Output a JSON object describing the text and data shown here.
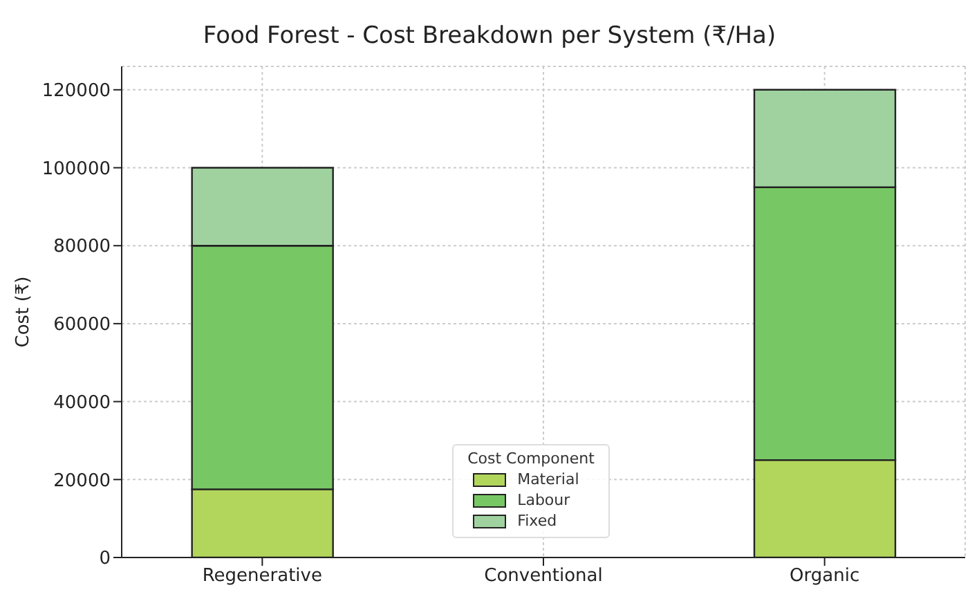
{
  "chart_data": {
    "type": "bar",
    "title": "Food Forest - Cost Breakdown per System (₹/Ha)",
    "ylabel": "Cost (₹)",
    "legend_title": "Cost Component",
    "categories": [
      "Regenerative",
      "Conventional",
      "Organic"
    ],
    "stacked": true,
    "series": [
      {
        "name": "Material",
        "color": "#b2d65c",
        "values": [
          17500,
          0,
          25000
        ]
      },
      {
        "name": "Labour",
        "color": "#78c765",
        "values": [
          62500,
          0,
          70000
        ]
      },
      {
        "name": "Fixed",
        "color": "#9fd29f",
        "values": [
          20000,
          0,
          25000
        ]
      }
    ],
    "ylim": [
      0,
      126000
    ],
    "yticks": [
      0,
      20000,
      40000,
      60000,
      80000,
      100000,
      120000
    ],
    "grid": true,
    "legend": "bottom"
  }
}
